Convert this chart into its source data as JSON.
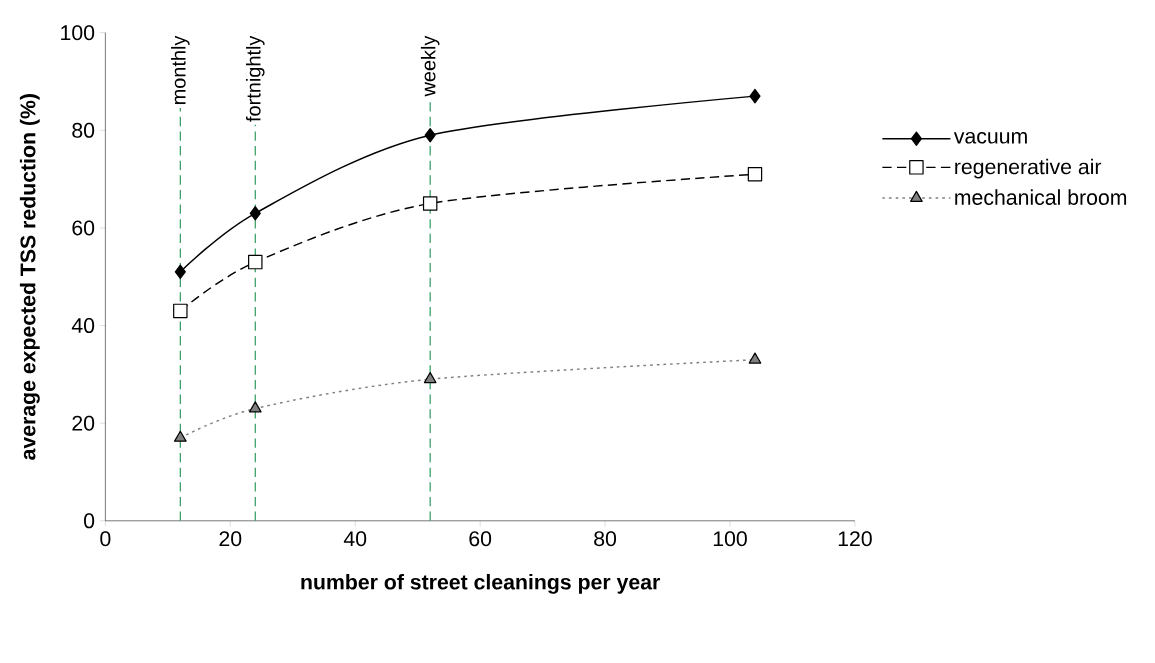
{
  "chart_data": {
    "type": "line",
    "xlabel": "number of street cleanings per year",
    "ylabel": "average expected TSS reduction (%)",
    "x": [
      12,
      24,
      52,
      104
    ],
    "series": [
      {
        "name": "vacuum",
        "color": "#000000",
        "values": [
          51,
          63,
          79,
          87
        ],
        "marker": "diamond",
        "line_style": "solid"
      },
      {
        "name": "regenerative air",
        "color": "#000000",
        "values": [
          43,
          53,
          65,
          71
        ],
        "marker": "square",
        "line_style": "dashed"
      },
      {
        "name": "mechanical broom",
        "color": "#808080",
        "values": [
          17,
          23,
          29,
          33
        ],
        "marker": "triangle",
        "line_style": "dotted"
      }
    ],
    "xlim": [
      0,
      120
    ],
    "xticks": [
      0,
      20,
      40,
      60,
      80,
      100,
      120
    ],
    "ylim": [
      0,
      100
    ],
    "yticks": [
      0,
      20,
      40,
      60,
      80,
      100
    ],
    "ref_lines": [
      {
        "axis": "x",
        "value": 12,
        "label": "monthly",
        "color": "#2e9960",
        "line_style": "dashed"
      },
      {
        "axis": "x",
        "value": 24,
        "label": "fortnightly",
        "color": "#2e9960",
        "line_style": "dashed"
      },
      {
        "axis": "x",
        "value": 52,
        "label": "weekly",
        "color": "#2e9960",
        "line_style": "dashed"
      }
    ],
    "grid": false,
    "legend": "right"
  }
}
